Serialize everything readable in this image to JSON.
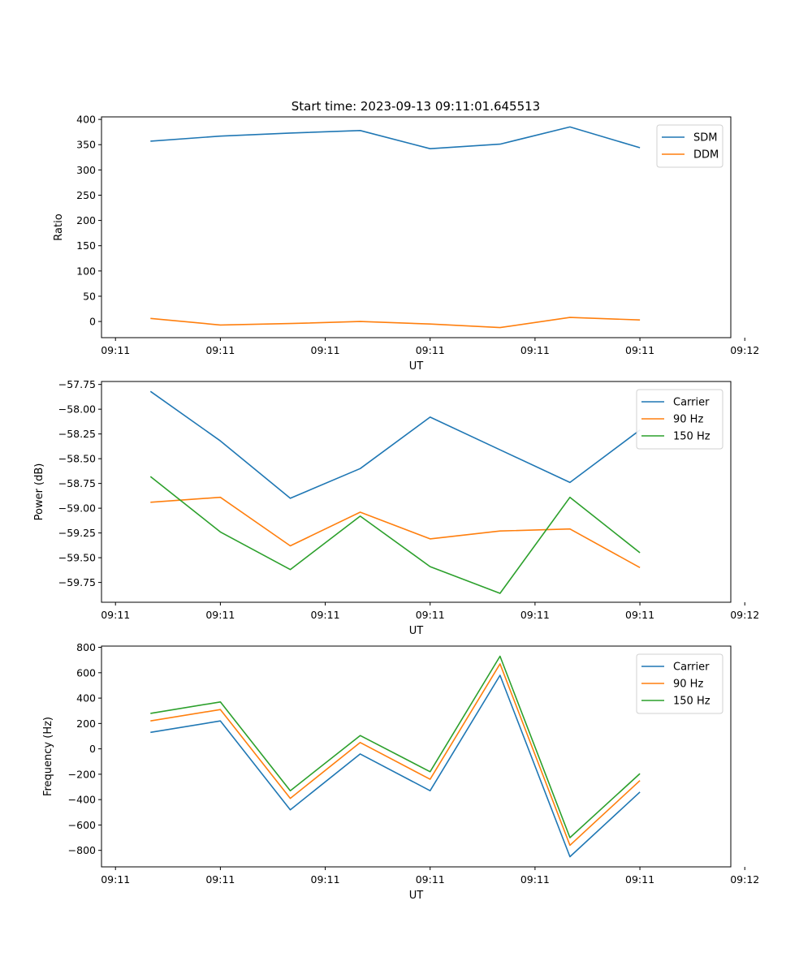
{
  "figure_title": "Start time: 2023-09-13 09:11:01.645513",
  "chart_data": [
    {
      "type": "line",
      "title": "Start time: 2023-09-13 09:11:01.645513",
      "xlabel": "UT",
      "ylabel": "Ratio",
      "x": [
        1,
        2,
        3,
        4,
        5,
        6,
        7,
        8
      ],
      "xlim": [
        0.3,
        9.3
      ],
      "xticks": [
        0.5,
        2,
        3.5,
        5,
        6.5,
        8,
        9.5
      ],
      "xticklabels": [
        "09:11",
        "09:11",
        "09:11",
        "09:11",
        "09:11",
        "09:11",
        "09:12"
      ],
      "ylim": [
        -32,
        405
      ],
      "yticks": [
        0,
        50,
        100,
        150,
        200,
        250,
        300,
        350,
        400
      ],
      "yticklabels": [
        "0",
        "50",
        "100",
        "150",
        "200",
        "250",
        "300",
        "350",
        "400"
      ],
      "legend": "top-right",
      "series": [
        {
          "name": "SDM",
          "color": "#1f77b4",
          "values": [
            357,
            367,
            373,
            378,
            342,
            351,
            385,
            344
          ]
        },
        {
          "name": "DDM",
          "color": "#ff7f0e",
          "values": [
            6,
            -7,
            -4,
            0,
            -5,
            -12,
            8,
            3
          ]
        }
      ]
    },
    {
      "type": "line",
      "title": "",
      "xlabel": "UT",
      "ylabel": "Power (dB)",
      "x": [
        1,
        2,
        3,
        4,
        5,
        6,
        7,
        8
      ],
      "xlim": [
        0.3,
        9.3
      ],
      "xticks": [
        0.5,
        2,
        3.5,
        5,
        6.5,
        8,
        9.5
      ],
      "xticklabels": [
        "09:11",
        "09:11",
        "09:11",
        "09:11",
        "09:11",
        "09:11",
        "09:12"
      ],
      "ylim": [
        -59.95,
        -57.72
      ],
      "yticks": [
        -59.75,
        -59.5,
        -59.25,
        -59.0,
        -58.75,
        -58.5,
        -58.25,
        -58.0,
        -57.75
      ],
      "yticklabels": [
        "−59.75",
        "−59.50",
        "−59.25",
        "−59.00",
        "−58.75",
        "−58.50",
        "−58.25",
        "−58.00",
        "−57.75"
      ],
      "legend": "top-right",
      "series": [
        {
          "name": "Carrier",
          "color": "#1f77b4",
          "values": [
            -57.82,
            -58.32,
            -58.9,
            -58.6,
            -58.08,
            -58.41,
            -58.74,
            -58.21
          ]
        },
        {
          "name": "90 Hz",
          "color": "#ff7f0e",
          "values": [
            -58.94,
            -58.89,
            -59.38,
            -59.04,
            -59.31,
            -59.23,
            -59.21,
            -59.6
          ]
        },
        {
          "name": "150 Hz",
          "color": "#2ca02c",
          "values": [
            -58.68,
            -59.24,
            -59.62,
            -59.08,
            -59.59,
            -59.86,
            -58.89,
            -59.45
          ]
        }
      ]
    },
    {
      "type": "line",
      "title": "",
      "xlabel": "UT",
      "ylabel": "Frequency (Hz)",
      "x": [
        1,
        2,
        3,
        4,
        5,
        6,
        7,
        8
      ],
      "xlim": [
        0.3,
        9.3
      ],
      "xticks": [
        0.5,
        2,
        3.5,
        5,
        6.5,
        8,
        9.5
      ],
      "xticklabels": [
        "09:11",
        "09:11",
        "09:11",
        "09:11",
        "09:11",
        "09:11",
        "09:12"
      ],
      "ylim": [
        -930,
        810
      ],
      "yticks": [
        -800,
        -600,
        -400,
        -200,
        0,
        200,
        400,
        600,
        800
      ],
      "yticklabels": [
        "−800",
        "−600",
        "−400",
        "−200",
        "0",
        "200",
        "400",
        "600",
        "800"
      ],
      "legend": "top-right",
      "series": [
        {
          "name": "Carrier",
          "color": "#1f77b4",
          "values": [
            130,
            220,
            -480,
            -40,
            -330,
            580,
            -850,
            -340
          ]
        },
        {
          "name": "90 Hz",
          "color": "#ff7f0e",
          "values": [
            220,
            310,
            -390,
            50,
            -240,
            670,
            -760,
            -250
          ]
        },
        {
          "name": "150 Hz",
          "color": "#2ca02c",
          "values": [
            280,
            370,
            -330,
            105,
            -180,
            730,
            -700,
            -195
          ]
        }
      ]
    }
  ]
}
